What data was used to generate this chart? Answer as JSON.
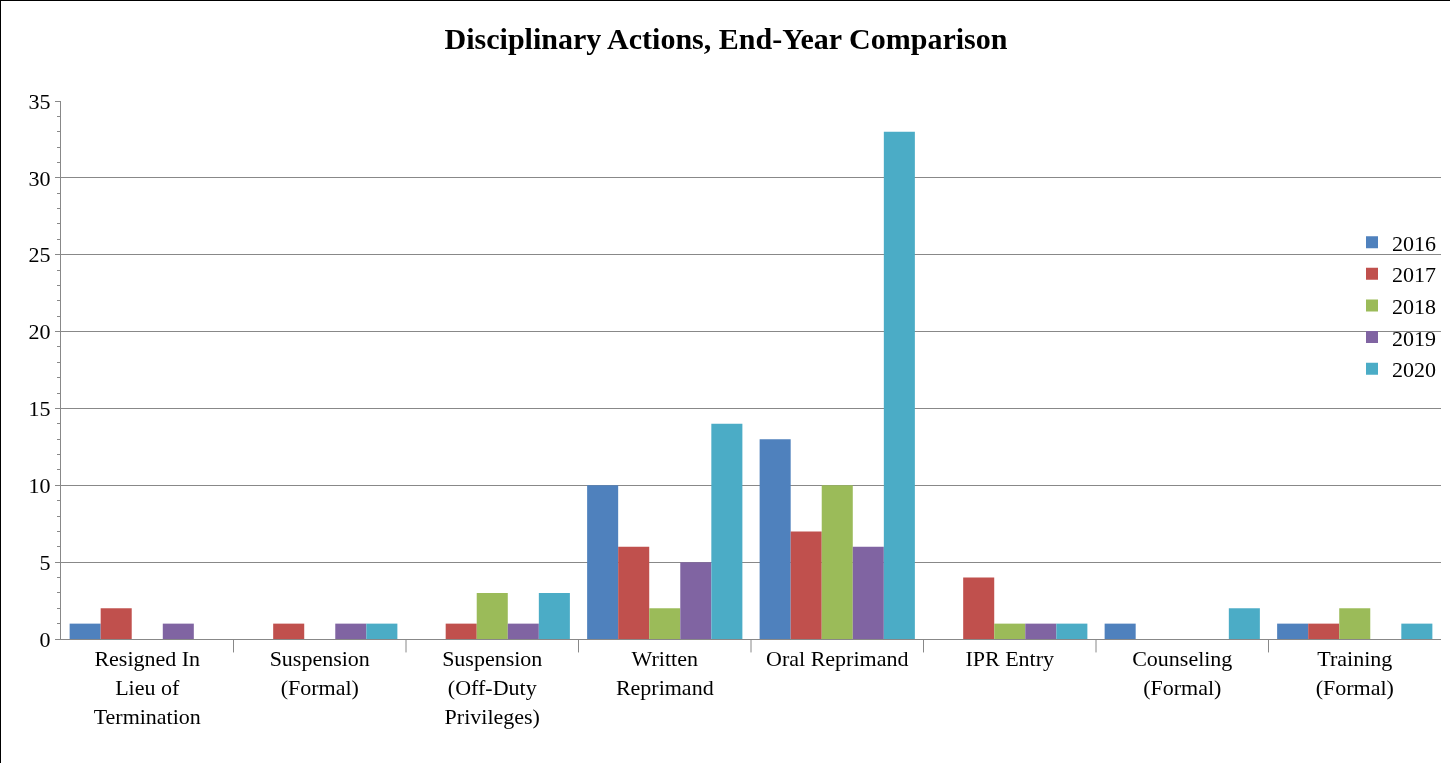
{
  "chart_data": {
    "type": "bar",
    "title": "Disciplinary Actions, End-Year Comparison",
    "categories": [
      "Resigned In Lieu of Termination",
      "Suspension (Formal)",
      "Suspension (Off-Duty Privileges)",
      "Written Reprimand",
      "Oral Reprimand",
      "IPR Entry",
      "Counseling (Formal)",
      "Training (Formal)"
    ],
    "series": [
      {
        "name": "2016",
        "color": "#4f81bd",
        "values": [
          1,
          0,
          0,
          10,
          13,
          0,
          1,
          1
        ]
      },
      {
        "name": "2017",
        "color": "#c0504d",
        "values": [
          2,
          1,
          1,
          6,
          7,
          4,
          0,
          1
        ]
      },
      {
        "name": "2018",
        "color": "#9bbb59",
        "values": [
          0,
          0,
          3,
          2,
          10,
          1,
          0,
          2
        ]
      },
      {
        "name": "2019",
        "color": "#8064a2",
        "values": [
          1,
          1,
          1,
          5,
          6,
          1,
          0,
          0
        ]
      },
      {
        "name": "2020",
        "color": "#4bacc6",
        "values": [
          0,
          1,
          3,
          14,
          33,
          1,
          2,
          1
        ]
      }
    ],
    "ylim": [
      0,
      35
    ],
    "yticks": [
      0,
      5,
      10,
      15,
      20,
      25,
      30,
      35
    ],
    "grid": "y",
    "legend": "right"
  }
}
